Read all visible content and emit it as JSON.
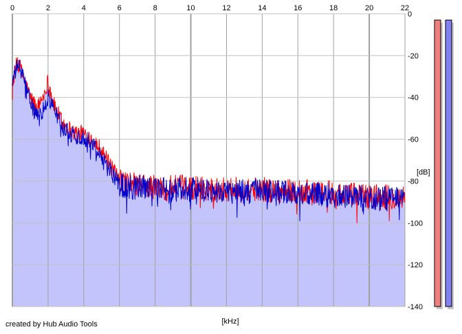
{
  "credit": "created by Hub Audio Tools",
  "chart_data": {
    "type": "area",
    "xlabel": "[kHz]",
    "ylabel": "[dB]",
    "xlim": [
      0,
      22
    ],
    "ylim": [
      -140,
      0
    ],
    "x_ticks": [
      0,
      2,
      4,
      6,
      8,
      10,
      12,
      14,
      16,
      18,
      20,
      22
    ],
    "y_ticks": [
      0,
      -20,
      -40,
      -60,
      -80,
      -100,
      -120,
      -140
    ],
    "grid": true,
    "series": [
      {
        "color": "#ff0000",
        "x": [
          0,
          0.3,
          0.6,
          1,
          1.4,
          1.8,
          2,
          2.3,
          2.8,
          3.5,
          4,
          4.5,
          5,
          5.5,
          6,
          7,
          8,
          10,
          12,
          14,
          16,
          18,
          20,
          22
        ],
        "values": [
          -33,
          -22,
          -30,
          -40,
          -45,
          -38,
          -32,
          -43,
          -52,
          -57,
          -57,
          -60,
          -65,
          -73,
          -80,
          -82,
          -83,
          -83,
          -84,
          -84,
          -85,
          -86,
          -87,
          -88
        ]
      },
      {
        "color": "#0000cc",
        "x": [
          0,
          0.3,
          0.6,
          1,
          1.4,
          1.8,
          2,
          2.3,
          2.8,
          3.5,
          4,
          4.5,
          5,
          5.5,
          6,
          7,
          8,
          10,
          12,
          14,
          16,
          18,
          20,
          22
        ],
        "values": [
          -33,
          -24,
          -30,
          -42,
          -50,
          -45,
          -40,
          -45,
          -54,
          -59,
          -59,
          -62,
          -68,
          -75,
          -82,
          -83,
          -84,
          -84,
          -85,
          -85,
          -86,
          -87,
          -88,
          -89
        ]
      }
    ],
    "fill_color": "#c4c4fc",
    "level_meters": [
      {
        "color": "#f08080",
        "value": -3
      },
      {
        "color": "#8080f0",
        "value": -3
      }
    ]
  }
}
